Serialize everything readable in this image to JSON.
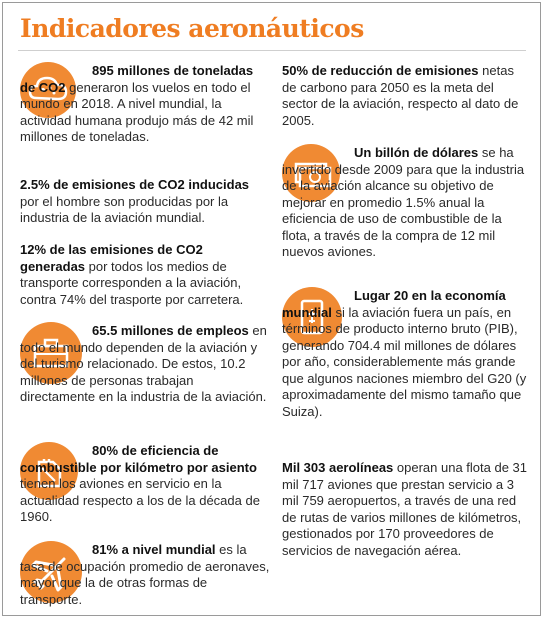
{
  "title": "Indicadores aeronáuticos",
  "accent_color": "#ef7d22",
  "items": [
    {
      "icon": "co2-cloud-icon",
      "bold": "895 millones de toneladas de CO2",
      "text": " generaron los vuelos en todo el mundo en 2018. A nivel mundial, la actividad humana produjo más de 42 mil millones de toneladas."
    },
    {
      "icon": "",
      "bold": "2.5% de emisiones de CO2 inducidas",
      "text": " por el hombre son producidas por la industria de la aviación mundial."
    },
    {
      "icon": "",
      "bold": "12% de las emisiones de CO2 generadas",
      "text": " por todos los medios de transporte corresponden a la aviación, contra 74% del trasporte por carretera."
    },
    {
      "icon": "briefcase-icon",
      "bold": "65.5 millones de empleos",
      "text": " en todo el mundo dependen de la aviación y del turismo relacionado. De estos, 10.2 millones de personas trabajan directamente en la industria de la aviación."
    },
    {
      "icon": "fuel-can-icon",
      "bold": "80% de eficiencia de combustible por kilómetro por asiento",
      "text": " tienen los aviones en servicio en la actualidad respecto a los de la década de 1960."
    },
    {
      "icon": "airplane-icon",
      "bold": "81% a nivel mundial",
      "text": " es la tasa de ocupación promedio de aeronaves, mayor que la de otras formas de transporte."
    },
    {
      "icon": "",
      "bold": "50% de reducción de emisiones",
      "text": " netas de carbono para 2050 es la meta del sector de la aviación, respecto al dato de 2005."
    },
    {
      "icon": "money-icon",
      "bold": "Un billón de dólares",
      "text": " se ha invertido desde 2009 para que la industria de la aviación alcance su objetivo de mejorar en promedio 1.5% anual la eficiencia de uso de combustible de la flota, a través de la compra de 12 mil nuevos aviones."
    },
    {
      "icon": "boarding-pass-icon",
      "bold": "Lugar 20 en la economía mundial",
      "text": " si la aviación fuera un país, en términos de producto interno bruto (PIB), generando 704.4 mil millones de dólares por año, considerablemente más grande que algunos naciones miembro del G20 (y aproximadamente del mismo tamaño que Suiza)."
    },
    {
      "icon": "",
      "bold": "Mil 303 aerolíneas",
      "text": " operan una flota de 31 mil 717 aviones que prestan servicio a 3 mil 759 aeropuertos, a través de una red de rutas de varios millones de kilómetros, gestionados por 170 proveedores de servicios de navegación aérea."
    }
  ]
}
